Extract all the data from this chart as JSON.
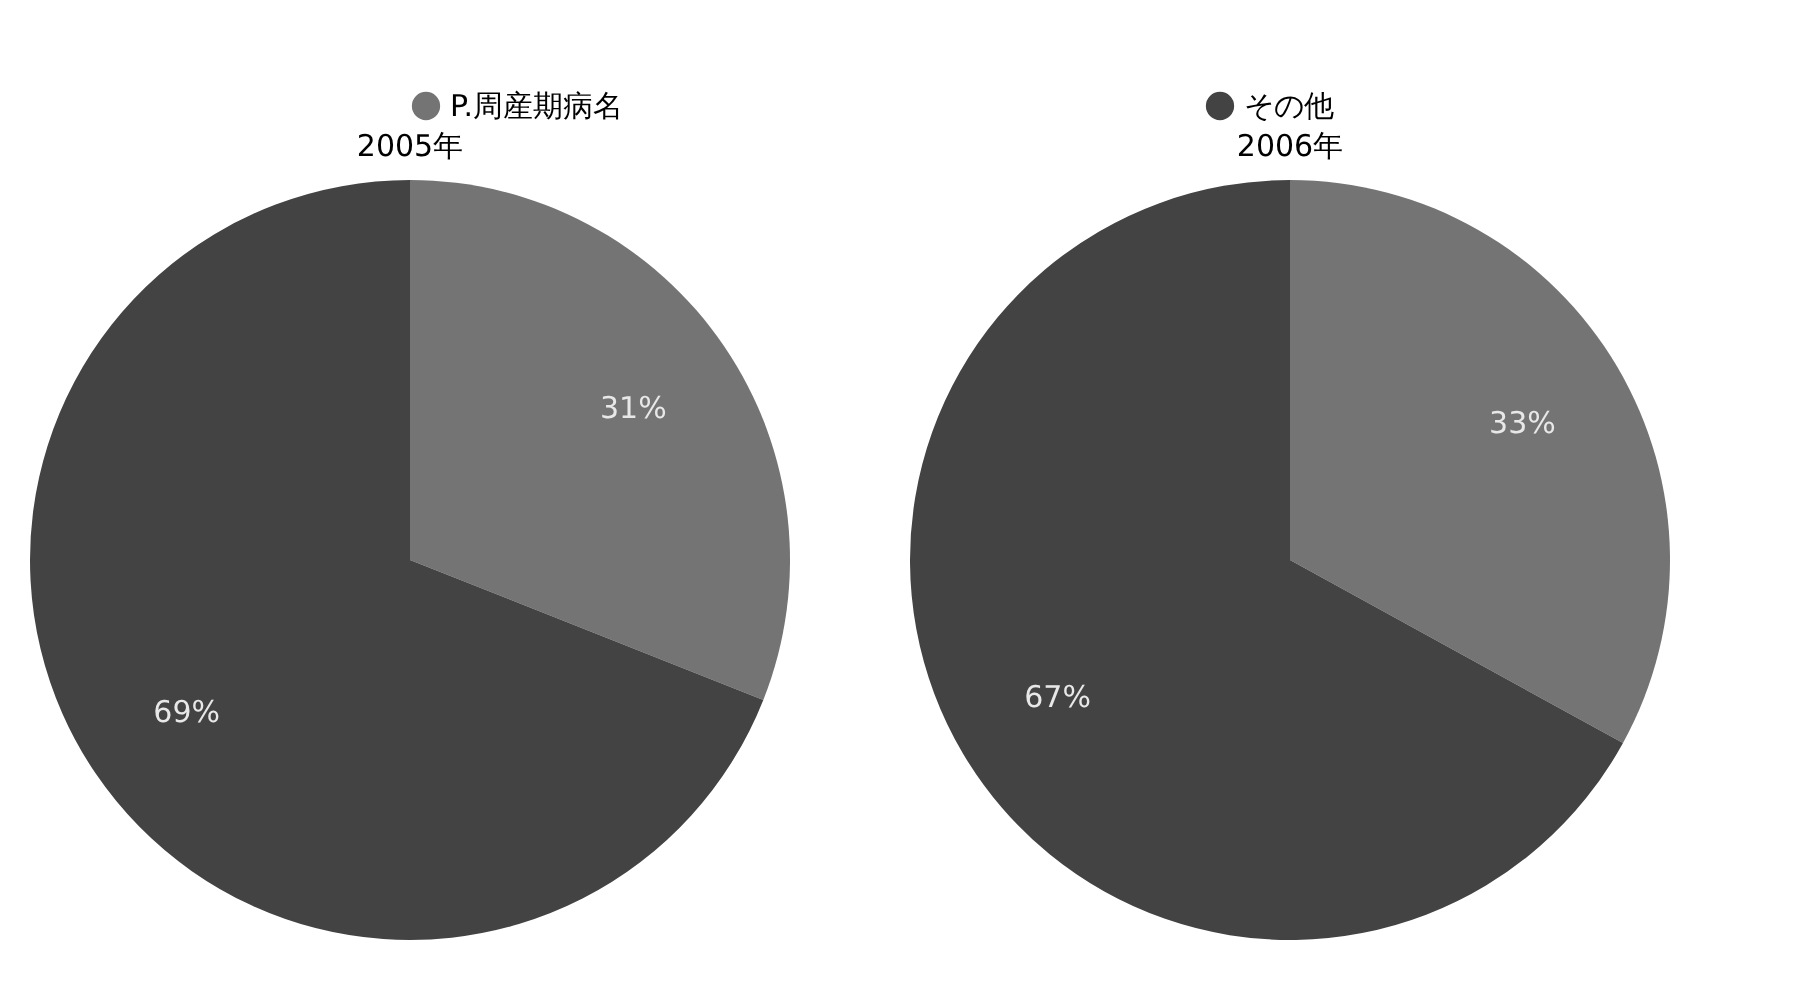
{
  "chart_data": [
    {
      "type": "pie",
      "title": "2005年",
      "categories": [
        "P.周産期病名",
        "その他"
      ],
      "values": [
        31,
        69
      ],
      "value_labels": [
        "31%",
        "69%"
      ],
      "colors": [
        "#747474",
        "#434343"
      ],
      "legend": "top"
    },
    {
      "type": "pie",
      "title": "2006年",
      "values": [
        33,
        67
      ],
      "value_labels": [
        "33%",
        "67%"
      ],
      "colors": [
        "#747474",
        "#434343"
      ]
    }
  ]
}
